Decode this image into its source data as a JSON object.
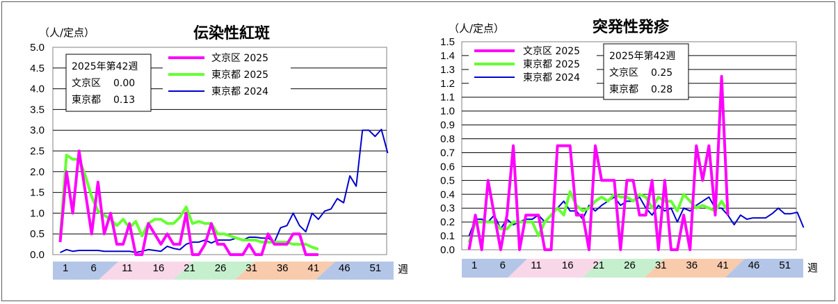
{
  "weeks": [
    1,
    6,
    11,
    16,
    21,
    26,
    31,
    36,
    41,
    46,
    51
  ],
  "week_unit": "週",
  "season_colors": [
    "#b4c6e7",
    "#f8d7e8",
    "#c6efce",
    "#f8cbad",
    "#b4c6e7"
  ],
  "chart_data": [
    {
      "type": "line",
      "title": "伝染性紅斑",
      "ylabel": "（人/定点）",
      "ylim": [
        0,
        5.0
      ],
      "yticks": [
        "0.0",
        "0.5",
        "1.0",
        "1.5",
        "2.0",
        "2.5",
        "3.0",
        "3.5",
        "4.0",
        "4.5",
        "5.0"
      ],
      "info_box": {
        "week": "2025年第42週",
        "lines": [
          [
            "文京区",
            "0.00"
          ],
          [
            "東京都",
            "0.13"
          ]
        ]
      },
      "series": [
        {
          "name": "文京区 2025",
          "color": "#ff00ff",
          "width": 4,
          "values": [
            0.3,
            2.0,
            1.0,
            2.5,
            1.5,
            0.5,
            1.75,
            0.5,
            1.0,
            0.25,
            0.25,
            0.75,
            0,
            0,
            0.75,
            0.5,
            0.25,
            0.5,
            0.25,
            0.25,
            1.0,
            0,
            0,
            0.25,
            0.75,
            0.25,
            0.25,
            0,
            0,
            0,
            0.25,
            0,
            0,
            0.5,
            0.25,
            0.25,
            0.25,
            0.5,
            0.5,
            0,
            0,
            0
          ]
        },
        {
          "name": "東京都 2025",
          "color": "#66ff33",
          "width": 4,
          "values": [
            0.4,
            2.4,
            2.3,
            2.3,
            1.9,
            1.4,
            1.05,
            0.95,
            0.85,
            0.7,
            0.85,
            0.65,
            0.8,
            0.45,
            0.75,
            0.85,
            0.85,
            0.75,
            0.75,
            0.9,
            1.15,
            0.75,
            0.8,
            0.75,
            0.75,
            0.5,
            0.5,
            0.45,
            0.4,
            0.35,
            0.35,
            0.35,
            0.3,
            0.3,
            0.3,
            0.3,
            0.3,
            0.25,
            0.25,
            0.25,
            0.18,
            0.13
          ]
        },
        {
          "name": "東京都 2024",
          "color": "#0000cc",
          "width": 2,
          "values": [
            0.05,
            0.12,
            0.08,
            0.1,
            0.1,
            0.1,
            0.1,
            0.08,
            0.08,
            0.08,
            0.08,
            0.08,
            0.05,
            0.08,
            0.12,
            0.1,
            0.08,
            0.2,
            0.15,
            0.12,
            0.25,
            0.3,
            0.3,
            0.35,
            0.28,
            0.35,
            0.35,
            0.35,
            0.4,
            0.35,
            0.42,
            0.42,
            0.4,
            0.4,
            0.3,
            0.65,
            0.7,
            1.0,
            0.7,
            0.55,
            1.0,
            0.85,
            1.05,
            1.1,
            1.35,
            1.25,
            1.9,
            1.65,
            3.0,
            3.0,
            2.85,
            3.02,
            2.45
          ]
        }
      ]
    },
    {
      "type": "line",
      "title": "突発性発疹",
      "ylabel": "（人/定点）",
      "ylim": [
        0,
        1.5
      ],
      "yticks": [
        "0.0",
        "0.1",
        "0.2",
        "0.3",
        "0.4",
        "0.5",
        "0.6",
        "0.7",
        "0.8",
        "0.9",
        "1.0",
        "1.1",
        "1.2",
        "1.3",
        "1.4",
        "1.5"
      ],
      "info_box": {
        "week": "2025年第42週",
        "lines": [
          [
            "文京区",
            "0.25"
          ],
          [
            "東京都",
            "0.28"
          ]
        ]
      },
      "series": [
        {
          "name": "文京区 2025",
          "color": "#ff00ff",
          "width": 4,
          "values": [
            0,
            0.25,
            0,
            0.5,
            0.25,
            0,
            0.25,
            0.75,
            0,
            0.25,
            0.25,
            0.25,
            0,
            0,
            0.75,
            0.75,
            0.75,
            0.25,
            0.25,
            0,
            0.75,
            0.5,
            0.5,
            0.5,
            0,
            0.5,
            0.5,
            0.25,
            0.25,
            0.5,
            0,
            0.5,
            0,
            0,
            0.25,
            0,
            0.75,
            0.5,
            0.75,
            0.25,
            1.25,
            0.25
          ]
        },
        {
          "name": "東京都 2025",
          "color": "#66ff33",
          "width": 4,
          "values": [
            0.05,
            0.2,
            0.2,
            0.2,
            0.2,
            0.15,
            0.15,
            0.2,
            0.2,
            0.2,
            0.2,
            0.1,
            0.2,
            0.25,
            0.3,
            0.25,
            0.42,
            0.32,
            0.28,
            0.3,
            0.35,
            0.38,
            0.35,
            0.4,
            0.38,
            0.38,
            0.35,
            0.4,
            0.38,
            0.3,
            0.38,
            0.35,
            0.35,
            0.28,
            0.4,
            0.35,
            0.3,
            0.32,
            0.3,
            0.28,
            0.35,
            0.28
          ]
        },
        {
          "name": "東京都 2024",
          "color": "#0000cc",
          "width": 2,
          "values": [
            0.1,
            0.22,
            0.22,
            0.2,
            0.25,
            0.15,
            0.22,
            0.18,
            0.2,
            0.22,
            0.22,
            0.25,
            0.2,
            0.25,
            0.3,
            0.35,
            0.28,
            0.28,
            0.22,
            0.32,
            0.28,
            0.32,
            0.35,
            0.38,
            0.32,
            0.35,
            0.35,
            0.38,
            0.3,
            0.25,
            0.32,
            0.28,
            0.3,
            0.2,
            0.3,
            0.28,
            0.32,
            0.35,
            0.38,
            0.3,
            0.3,
            0.25,
            0.18,
            0.25,
            0.22,
            0.23,
            0.23,
            0.23,
            0.26,
            0.3,
            0.26,
            0.26,
            0.27,
            0.16
          ]
        }
      ]
    }
  ]
}
